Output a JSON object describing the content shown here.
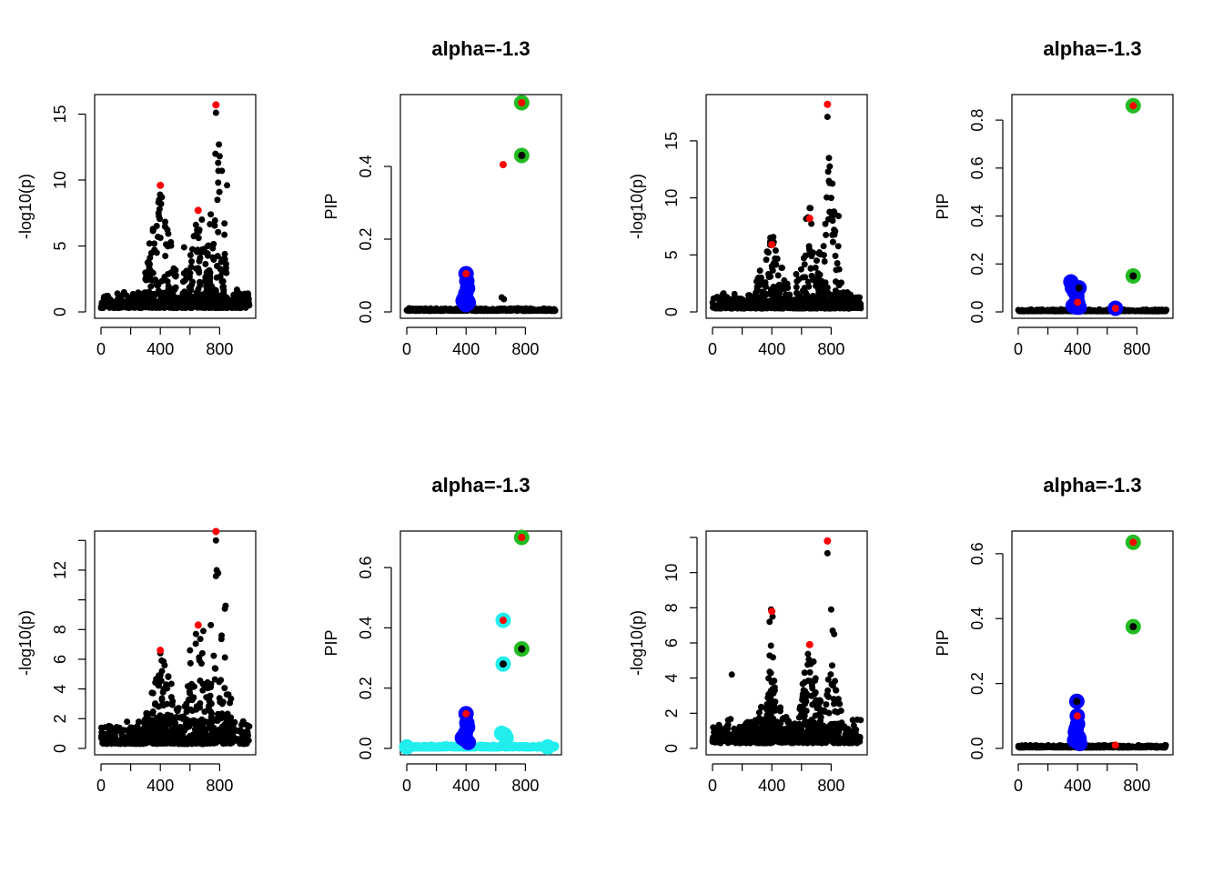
{
  "colors": {
    "black": "#000000",
    "red": "#ff0000",
    "blue": "#0000ff",
    "green": "#22bb22",
    "cyan": "#22eeee"
  },
  "chart_data": [
    {
      "type": "scatter",
      "title": "",
      "xlabel": "",
      "ylabel": "-log10(p)",
      "xlim": [
        0,
        1000
      ],
      "ylim": [
        0,
        16
      ],
      "xticks": [
        0,
        400,
        800
      ],
      "yticks": [
        0,
        5,
        10,
        15
      ],
      "grid": false,
      "noise": {
        "n": 500,
        "ymax": 1.5
      },
      "clusters": [
        {
          "center": 400,
          "spread": 110,
          "count": 110,
          "ymax": 9
        },
        {
          "center": 650,
          "spread": 100,
          "count": 80,
          "ymax": 7
        },
        {
          "center": 780,
          "spread": 80,
          "count": 60,
          "ymax": 12.5
        }
      ],
      "black_points": [
        [
          392,
          8.5
        ],
        [
          398,
          8.9
        ],
        [
          405,
          8.2
        ],
        [
          388,
          7.5
        ],
        [
          410,
          8.7
        ],
        [
          395,
          7.8
        ],
        [
          640,
          6.6
        ],
        [
          660,
          6.1
        ],
        [
          775,
          15.1
        ],
        [
          795,
          12.7
        ],
        [
          800,
          11.8
        ],
        [
          790,
          11.3
        ],
        [
          815,
          10.7
        ],
        [
          790,
          9.8
        ],
        [
          850,
          9.6
        ],
        [
          785,
          8.5
        ],
        [
          680,
          7.0
        ],
        [
          740,
          7.4
        ],
        [
          330,
          4.1
        ],
        [
          560,
          4.9
        ],
        [
          720,
          5.0
        ]
      ],
      "red_points": [
        [
          400,
          9.6
        ],
        [
          655,
          7.7
        ],
        [
          775,
          15.7
        ]
      ],
      "rings": []
    },
    {
      "type": "scatter",
      "title": "alpha=-1.3",
      "xlabel": "",
      "ylabel": "PIP",
      "xlim": [
        0,
        1000
      ],
      "ylim": [
        0,
        0.58
      ],
      "xticks": [
        0,
        400,
        800
      ],
      "yticks": [
        0.0,
        0.2,
        0.4
      ],
      "grid": false,
      "noise": {
        "n": 400,
        "ymax": 0.008
      },
      "clusters": [],
      "black_points": [
        [
          640,
          0.04
        ],
        [
          655,
          0.035
        ]
      ],
      "red_points": [
        [
          650,
          0.405
        ]
      ],
      "rings": [
        {
          "color": "blue",
          "points": [
            [
              400,
              0.105
            ],
            [
              405,
              0.085
            ],
            [
              410,
              0.065
            ],
            [
              398,
              0.05
            ],
            [
              395,
              0.04
            ],
            [
              385,
              0.035
            ],
            [
              380,
              0.03
            ],
            [
              390,
              0.025
            ],
            [
              410,
              0.03
            ],
            [
              415,
              0.025
            ],
            [
              400,
              0.02
            ]
          ],
          "inner": [
            [
              400,
              0.105,
              "red"
            ]
          ]
        },
        {
          "color": "green",
          "points": [
            [
              775,
              0.575
            ],
            [
              775,
              0.43
            ]
          ],
          "inner": [
            [
              775,
              0.575,
              "red"
            ],
            [
              775,
              0.43,
              "black"
            ]
          ]
        }
      ]
    },
    {
      "type": "scatter",
      "title": "",
      "xlabel": "",
      "ylabel": "-log10(p)",
      "xlim": [
        0,
        1000
      ],
      "ylim": [
        0,
        18.5
      ],
      "xticks": [
        0,
        400,
        800
      ],
      "yticks": [
        0,
        5,
        10,
        15
      ],
      "grid": false,
      "noise": {
        "n": 500,
        "ymax": 1.5
      },
      "clusters": [
        {
          "center": 400,
          "spread": 110,
          "count": 100,
          "ymax": 6.5
        },
        {
          "center": 650,
          "spread": 90,
          "count": 70,
          "ymax": 9
        },
        {
          "center": 790,
          "spread": 80,
          "count": 60,
          "ymax": 13
        }
      ],
      "black_points": [
        [
          775,
          17.1
        ],
        [
          785,
          13.5
        ],
        [
          780,
          12.3
        ],
        [
          790,
          11.3
        ],
        [
          800,
          10.0
        ],
        [
          660,
          9.1
        ],
        [
          810,
          8.0
        ],
        [
          850,
          8.4
        ],
        [
          390,
          6.5
        ],
        [
          405,
          6.3
        ],
        [
          820,
          7.2
        ]
      ],
      "red_points": [
        [
          400,
          5.9
        ],
        [
          655,
          8.2
        ],
        [
          775,
          18.2
        ]
      ],
      "rings": []
    },
    {
      "type": "scatter",
      "title": "alpha=-1.3",
      "xlabel": "",
      "ylabel": "PIP",
      "xlim": [
        0,
        1000
      ],
      "ylim": [
        0,
        0.88
      ],
      "xticks": [
        0,
        400,
        800
      ],
      "yticks": [
        0.0,
        0.2,
        0.4,
        0.6,
        0.8
      ],
      "grid": false,
      "noise": {
        "n": 400,
        "ymax": 0.008
      },
      "clusters": [],
      "black_points": [],
      "red_points": [],
      "rings": [
        {
          "color": "blue",
          "points": [
            [
              355,
              0.125
            ],
            [
              365,
              0.1
            ],
            [
              380,
              0.085
            ],
            [
              395,
              0.065
            ],
            [
              410,
              0.1
            ],
            [
              400,
              0.04
            ],
            [
              385,
              0.03
            ],
            [
              370,
              0.025
            ],
            [
              395,
              0.02
            ],
            [
              410,
              0.02
            ],
            [
              655,
              0.015
            ]
          ],
          "inner": [
            [
              400,
              0.04,
              "red"
            ],
            [
              410,
              0.1,
              "black"
            ],
            [
              655,
              0.015,
              "red"
            ]
          ]
        },
        {
          "color": "green",
          "points": [
            [
              775,
              0.86
            ],
            [
              775,
              0.15
            ]
          ],
          "inner": [
            [
              775,
              0.86,
              "red"
            ],
            [
              775,
              0.15,
              "black"
            ]
          ]
        }
      ]
    },
    {
      "type": "scatter",
      "title": "",
      "xlabel": "",
      "ylabel": "-log10(p)",
      "xlim": [
        0,
        1000
      ],
      "ylim": [
        0,
        14.2
      ],
      "xticks": [
        0,
        400,
        800
      ],
      "yticks": [
        0,
        2,
        4,
        6,
        8,
        10,
        12,
        14
      ],
      "ytick_labels": [
        "0",
        "2",
        "4",
        "6",
        "8",
        "",
        "12",
        ""
      ],
      "grid": false,
      "noise": {
        "n": 500,
        "ymax": 1.8
      },
      "clusters": [
        {
          "center": 420,
          "spread": 120,
          "count": 110,
          "ymax": 6
        },
        {
          "center": 650,
          "spread": 100,
          "count": 90,
          "ymax": 8
        },
        {
          "center": 800,
          "spread": 80,
          "count": 70,
          "ymax": 9
        }
      ],
      "black_points": [
        [
          775,
          14.0
        ],
        [
          780,
          12.0
        ],
        [
          790,
          11.8
        ],
        [
          775,
          11.6
        ],
        [
          840,
          9.6
        ],
        [
          835,
          9.4
        ],
        [
          740,
          8.3
        ],
        [
          690,
          7.9
        ],
        [
          600,
          6.6
        ],
        [
          400,
          6.4
        ]
      ],
      "red_points": [
        [
          400,
          6.6
        ],
        [
          655,
          8.3
        ],
        [
          775,
          14.6
        ]
      ],
      "rings": []
    },
    {
      "type": "scatter",
      "title": "alpha=-1.3",
      "xlabel": "",
      "ylabel": "PIP",
      "xlim": [
        0,
        1000
      ],
      "ylim": [
        0,
        0.7
      ],
      "xticks": [
        0,
        400,
        800
      ],
      "yticks": [
        0.0,
        0.2,
        0.4,
        0.6
      ],
      "grid": false,
      "noise": {
        "n": 400,
        "ymax": 0.008,
        "color": "cyan",
        "size": 9
      },
      "clusters": [],
      "black_points": [
        [
          0,
          0.005
        ],
        [
          950,
          0.005
        ]
      ],
      "red_points": [],
      "rings": [
        {
          "color": "cyan",
          "points": [
            [
              650,
              0.425
            ],
            [
              650,
              0.28
            ],
            [
              640,
              0.05
            ],
            [
              660,
              0.045
            ],
            [
              670,
              0.035
            ],
            [
              0,
              0.005
            ],
            [
              950,
              0.005
            ]
          ],
          "inner": [
            [
              650,
              0.425,
              "red"
            ],
            [
              650,
              0.28,
              "black"
            ]
          ]
        },
        {
          "color": "blue",
          "points": [
            [
              400,
              0.115
            ],
            [
              405,
              0.085
            ],
            [
              410,
              0.07
            ],
            [
              395,
              0.05
            ],
            [
              385,
              0.04
            ],
            [
              375,
              0.035
            ],
            [
              390,
              0.03
            ],
            [
              405,
              0.025
            ],
            [
              415,
              0.02
            ]
          ],
          "inner": [
            [
              400,
              0.115,
              "red"
            ]
          ]
        },
        {
          "color": "green",
          "points": [
            [
              775,
              0.7
            ],
            [
              775,
              0.33
            ]
          ],
          "inner": [
            [
              775,
              0.7,
              "red"
            ],
            [
              775,
              0.33,
              "black"
            ]
          ]
        }
      ]
    },
    {
      "type": "scatter",
      "title": "",
      "xlabel": "",
      "ylabel": "-log10(p)",
      "xlim": [
        0,
        1000
      ],
      "ylim": [
        0,
        12
      ],
      "xticks": [
        0,
        400,
        800
      ],
      "yticks": [
        0,
        2,
        4,
        6,
        8,
        10,
        12
      ],
      "ytick_labels": [
        "0",
        "2",
        "4",
        "6",
        "8",
        "10",
        ""
      ],
      "grid": false,
      "noise": {
        "n": 500,
        "ymax": 1.6
      },
      "clusters": [
        {
          "center": 395,
          "spread": 30,
          "count": 60,
          "ymax": 7.5
        },
        {
          "center": 400,
          "spread": 130,
          "count": 60,
          "ymax": 3.2
        },
        {
          "center": 660,
          "spread": 80,
          "count": 90,
          "ymax": 6.3
        },
        {
          "center": 800,
          "spread": 90,
          "count": 60,
          "ymax": 4.5
        }
      ],
      "black_points": [
        [
          395,
          7.9
        ],
        [
          405,
          7.5
        ],
        [
          385,
          7.2
        ],
        [
          775,
          11.1
        ],
        [
          800,
          7.9
        ],
        [
          820,
          6.5
        ],
        [
          810,
          6.7
        ],
        [
          130,
          4.2
        ]
      ],
      "red_points": [
        [
          400,
          7.8
        ],
        [
          655,
          5.9
        ],
        [
          775,
          11.8
        ]
      ],
      "rings": []
    },
    {
      "type": "scatter",
      "title": "alpha=-1.3",
      "xlabel": "",
      "ylabel": "PIP",
      "xlim": [
        0,
        1000
      ],
      "ylim": [
        0,
        0.65
      ],
      "xticks": [
        0,
        400,
        800
      ],
      "yticks": [
        0.0,
        0.2,
        0.4,
        0.6
      ],
      "grid": false,
      "noise": {
        "n": 400,
        "ymax": 0.008
      },
      "clusters": [],
      "black_points": [],
      "red_points": [
        [
          655,
          0.01
        ]
      ],
      "rings": [
        {
          "color": "blue",
          "points": [
            [
              395,
              0.145
            ],
            [
              398,
              0.1
            ],
            [
              400,
              0.075
            ],
            [
              390,
              0.06
            ],
            [
              385,
              0.05
            ],
            [
              395,
              0.04
            ],
            [
              405,
              0.035
            ],
            [
              410,
              0.03
            ],
            [
              380,
              0.025
            ],
            [
              400,
              0.02
            ],
            [
              415,
              0.015
            ]
          ],
          "inner": [
            [
              395,
              0.145,
              "black"
            ],
            [
              398,
              0.1,
              "red"
            ]
          ]
        },
        {
          "color": "green",
          "points": [
            [
              775,
              0.635
            ],
            [
              775,
              0.375
            ]
          ],
          "inner": [
            [
              775,
              0.635,
              "red"
            ],
            [
              775,
              0.375,
              "black"
            ]
          ]
        }
      ]
    }
  ]
}
